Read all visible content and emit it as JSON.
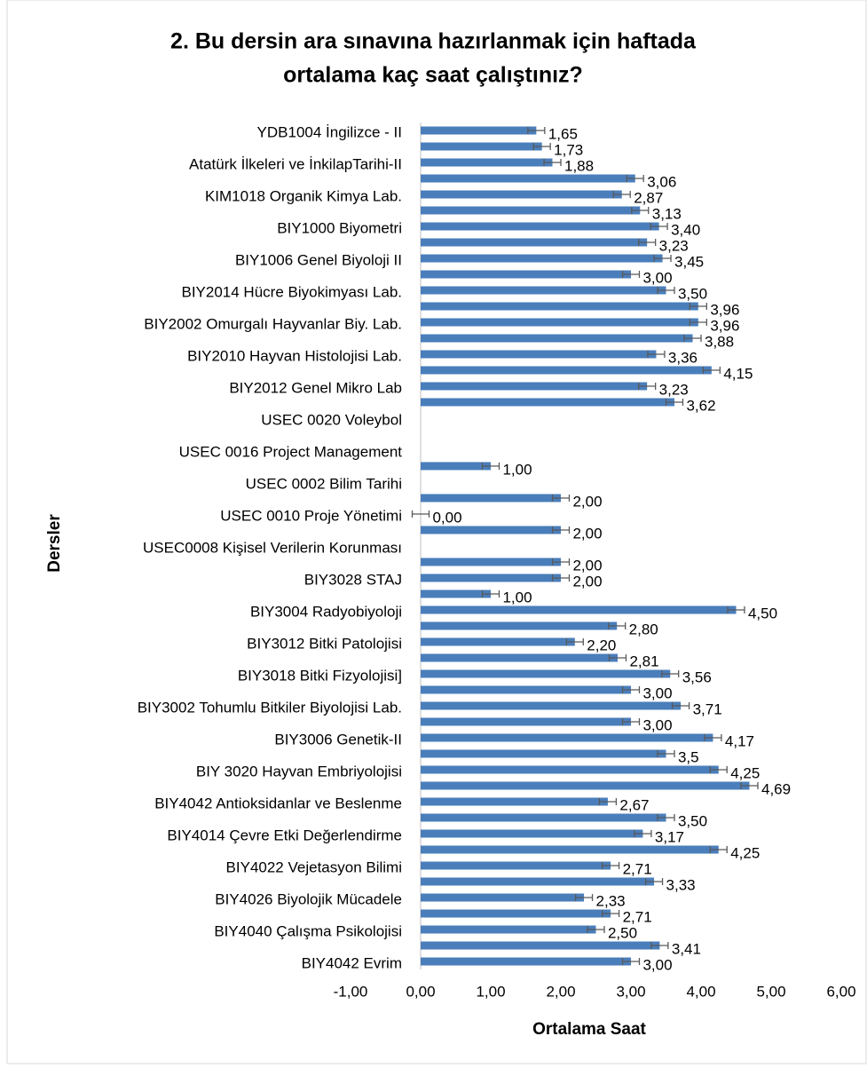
{
  "chart_data": {
    "type": "bar_h",
    "title": [
      "2. Bu dersin ara sınavına hazırlanmak için haftada",
      "ortalama kaç saat çalıştınız?"
    ],
    "x_label": "Ortalama Saat",
    "y_label": "Dersler",
    "color": "#4a7ebb",
    "error_color": "#595959",
    "categories": [
      "YDB1004 İngilizce - II",
      null,
      "Atatürk İlkeleri ve İnkilapTarihi-II",
      null,
      "KIM1018 Organik Kimya Lab.",
      null,
      "BIY1000 Biyometri",
      null,
      "BIY1006 Genel Biyoloji II",
      null,
      "BIY2014 Hücre Biyokimyası Lab.",
      null,
      "BIY2002 Omurgalı Hayvanlar Biy. Lab.",
      null,
      "BIY2010 Hayvan Histolojisi Lab.",
      null,
      "BIY2012 Genel Mikro Lab",
      null,
      "USEC 0020 Voleybol",
      null,
      "USEC 0016 Project Management",
      null,
      "USEC 0002 Bilim Tarihi",
      null,
      "USEC 0010 Proje Yönetimi",
      null,
      "USEC0008 Kişisel Verilerin Korunması",
      null,
      "BIY3028 STAJ",
      null,
      "BIY3004 Radyobiyoloji",
      null,
      "BIY3012 Bitki Patolojisi",
      null,
      "BIY3018 Bitki Fizyolojisi]",
      null,
      "BIY3002 Tohumlu Bitkiler Biyolojisi Lab.",
      null,
      "BIY3006 Genetik-II",
      null,
      "BIY 3020 Hayvan Embriyolojisi",
      null,
      "BIY4042 Antioksidanlar ve Beslenme",
      null,
      "BIY4014 Çevre Etki Değerlendirme",
      null,
      "BIY4022 Vejetasyon Bilimi",
      null,
      "BIY4026 Biyolojik Mücadele",
      null,
      "BIY4040 Çalışma Psikolojisi",
      null,
      "BIY4042 Evrim"
    ],
    "values": [
      1.65,
      1.73,
      1.88,
      3.06,
      2.87,
      3.13,
      3.4,
      3.23,
      3.45,
      3.0,
      3.5,
      3.96,
      3.96,
      3.88,
      3.36,
      4.15,
      3.23,
      3.62,
      null,
      null,
      null,
      1.0,
      null,
      2.0,
      0.0,
      2.0,
      null,
      2.0,
      2.0,
      1.0,
      4.5,
      2.8,
      2.2,
      2.81,
      3.56,
      3.0,
      3.71,
      3.0,
      4.17,
      3.5,
      4.25,
      4.69,
      2.67,
      3.5,
      3.17,
      4.25,
      2.71,
      3.33,
      2.33,
      2.71,
      2.5,
      3.41,
      3.0
    ],
    "value_labels": [
      "1,65",
      "1,73",
      "1,88",
      "3,06",
      "2,87",
      "3,13",
      "3,40",
      "3,23",
      "3,45",
      "3,00",
      "3,50",
      "3,96",
      "3,96",
      "3,88",
      "3,36",
      "4,15",
      "3,23",
      "3,62",
      null,
      null,
      null,
      "1,00",
      null,
      "2,00",
      "0,00",
      "2,00",
      null,
      "2,00",
      "2,00",
      "1,00",
      "4,50",
      "2,80",
      "2,20",
      "2,81",
      "3,56",
      "3,00",
      "3,71",
      "3,00",
      "4,17",
      "3,5",
      "4,25",
      "4,69",
      "2,67",
      "3,50",
      "3,17",
      "4,25",
      "2,71",
      "3,33",
      "2,33",
      "2,71",
      "2,50",
      "3,41",
      "3,00"
    ],
    "errors": [
      0.12,
      0.12,
      0.12,
      0.12,
      0.12,
      0.12,
      0.12,
      0.12,
      0.12,
      0.12,
      0.12,
      0.12,
      0.12,
      0.12,
      0.12,
      0.12,
      0.12,
      0.12,
      null,
      null,
      null,
      0.12,
      null,
      0.12,
      0.12,
      0.12,
      null,
      0.12,
      0.12,
      0.12,
      0.12,
      0.12,
      0.12,
      0.12,
      0.12,
      0.12,
      0.12,
      0.12,
      0.12,
      0.12,
      0.12,
      0.12,
      0.12,
      0.12,
      0.12,
      0.12,
      0.12,
      0.12,
      0.12,
      0.12,
      0.12,
      0.12,
      0.12
    ],
    "xlim": [
      -1,
      6
    ],
    "xticks": [
      {
        "value": -1,
        "label": "-1,00"
      },
      {
        "value": 0,
        "label": "0,00"
      },
      {
        "value": 1,
        "label": "1,00"
      },
      {
        "value": 2,
        "label": "2,00"
      },
      {
        "value": 3,
        "label": "3,00"
      },
      {
        "value": 4,
        "label": "4,00"
      },
      {
        "value": 5,
        "label": "5,00"
      },
      {
        "value": 6,
        "label": "6,00"
      }
    ],
    "grid": false
  }
}
